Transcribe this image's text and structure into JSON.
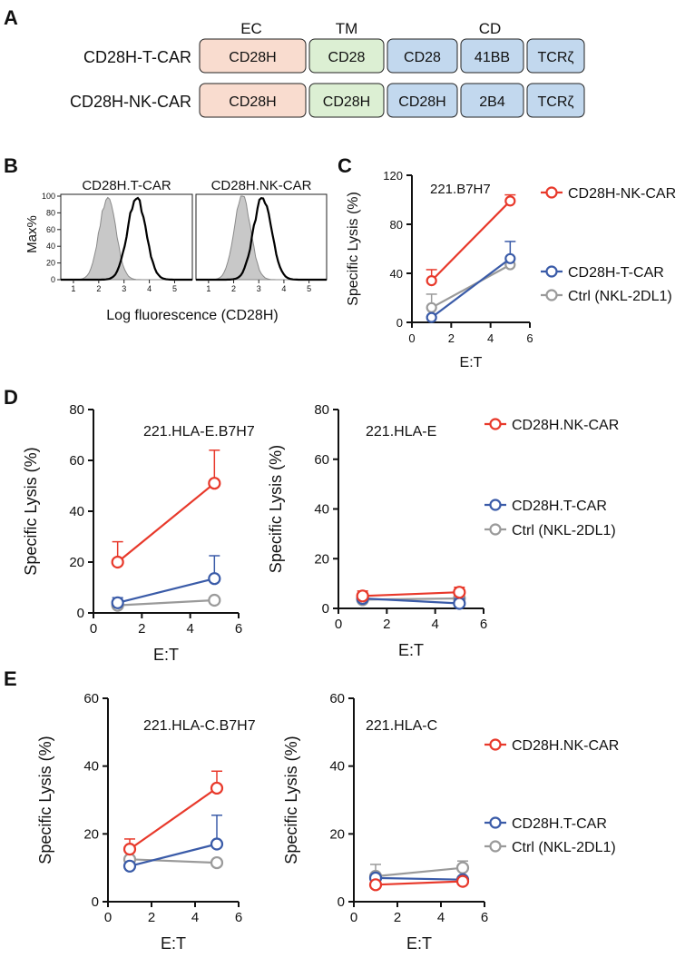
{
  "panel_letters": {
    "a": "A",
    "b": "B",
    "c": "C",
    "d": "D",
    "e": "E"
  },
  "colors": {
    "nk": "#e8392b",
    "t": "#3a5ba8",
    "ctrl": "#9a9a9a",
    "ec_fill": "#f9dccf",
    "tm_fill": "#dcefd3",
    "cd_fill": "#c2d8ee",
    "hist_fill": "#c8c8c8"
  },
  "constructs": {
    "headers": {
      "ec": "EC",
      "tm": "TM",
      "cd": "CD"
    },
    "rows": [
      {
        "name": "CD28H-T-CAR",
        "segments": [
          {
            "label": "CD28H",
            "domain": "ec"
          },
          {
            "label": "CD28",
            "domain": "tm"
          },
          {
            "label": "CD28",
            "domain": "cd"
          },
          {
            "label": "41BB",
            "domain": "cd"
          },
          {
            "label": "TCRζ",
            "domain": "cd"
          }
        ]
      },
      {
        "name": "CD28H-NK-CAR",
        "segments": [
          {
            "label": "CD28H",
            "domain": "ec"
          },
          {
            "label": "CD28H",
            "domain": "tm"
          },
          {
            "label": "CD28H",
            "domain": "cd"
          },
          {
            "label": "2B4",
            "domain": "cd"
          },
          {
            "label": "TCRζ",
            "domain": "cd"
          }
        ]
      }
    ]
  },
  "flow": {
    "ylabel": "Max%",
    "xlabel": "Log fluorescence (CD28H)",
    "yticks": [
      "0",
      "20",
      "40",
      "60",
      "80",
      "100"
    ],
    "xticks": [
      "1",
      "2",
      "3",
      "4",
      "5"
    ],
    "panels": [
      {
        "title": "CD28H.T-CAR",
        "ctrl_peak": 2.35,
        "car_peak": 3.5
      },
      {
        "title": "CD28H.NK-CAR",
        "ctrl_peak": 2.35,
        "car_peak": 3.15
      }
    ]
  },
  "chart_data": [
    {
      "id": "C",
      "type": "line",
      "title": "221.B7H7",
      "xlabel": "E:T",
      "ylabel": "Specific Lysis (%)",
      "xlim": [
        0,
        6
      ],
      "ylim": [
        0,
        120
      ],
      "xticks": [
        0,
        2,
        4,
        6
      ],
      "yticks": [
        0,
        40,
        80,
        120
      ],
      "series": [
        {
          "name": "CD28H-NK-CAR",
          "color_key": "nk",
          "x": [
            1,
            5
          ],
          "y": [
            34,
            99
          ],
          "err": [
            9,
            5
          ]
        },
        {
          "name": "CD28H-T-CAR",
          "color_key": "t",
          "x": [
            1,
            5
          ],
          "y": [
            4,
            52
          ],
          "err": [
            0,
            14
          ]
        },
        {
          "name": "Ctrl (NKL-2DL1)",
          "color_key": "ctrl",
          "x": [
            1,
            5
          ],
          "y": [
            12,
            47
          ],
          "err": [
            11,
            0
          ]
        }
      ]
    },
    {
      "id": "D1",
      "type": "line",
      "title": "221.HLA-E.B7H7",
      "xlabel": "E:T",
      "ylabel": "Specific Lysis (%)",
      "xlim": [
        0,
        6
      ],
      "ylim": [
        0,
        80
      ],
      "xticks": [
        0,
        2,
        4,
        6
      ],
      "yticks": [
        0,
        20,
        40,
        60,
        80
      ],
      "series": [
        {
          "name": "CD28H.NK-CAR",
          "color_key": "nk",
          "x": [
            1,
            5
          ],
          "y": [
            20,
            51
          ],
          "err": [
            8,
            13
          ]
        },
        {
          "name": "CD28H.T-CAR",
          "color_key": "t",
          "x": [
            1,
            5
          ],
          "y": [
            4,
            13.5
          ],
          "err": [
            2,
            9
          ]
        },
        {
          "name": "Ctrl (NKL-2DL1)",
          "color_key": "ctrl",
          "x": [
            1,
            5
          ],
          "y": [
            3,
            5
          ],
          "err": [
            0,
            0
          ]
        }
      ]
    },
    {
      "id": "D2",
      "type": "line",
      "title": "221.HLA-E",
      "xlabel": "E:T",
      "ylabel": "Specific Lysis (%)",
      "xlim": [
        0,
        6
      ],
      "ylim": [
        0,
        80
      ],
      "xticks": [
        0,
        2,
        4,
        6
      ],
      "yticks": [
        0,
        20,
        40,
        60,
        80
      ],
      "series": [
        {
          "name": "CD28H.NK-CAR",
          "color_key": "nk",
          "x": [
            1,
            5
          ],
          "y": [
            5,
            6.5
          ],
          "err": [
            2,
            2
          ]
        },
        {
          "name": "CD28H.T-CAR",
          "color_key": "t",
          "x": [
            1,
            5
          ],
          "y": [
            4,
            2
          ],
          "err": [
            2,
            2
          ]
        },
        {
          "name": "Ctrl (NKL-2DL1)",
          "color_key": "ctrl",
          "x": [
            1,
            5
          ],
          "y": [
            3.5,
            4
          ],
          "err": [
            1,
            1
          ]
        }
      ]
    },
    {
      "id": "E1",
      "type": "line",
      "title": "221.HLA-C.B7H7",
      "xlabel": "E:T",
      "ylabel": "Specific Lysis (%)",
      "xlim": [
        0,
        6
      ],
      "ylim": [
        0,
        60
      ],
      "xticks": [
        0,
        2,
        4,
        6
      ],
      "yticks": [
        0,
        20,
        40,
        60
      ],
      "series": [
        {
          "name": "CD28H.NK-CAR",
          "color_key": "nk",
          "x": [
            1,
            5
          ],
          "y": [
            15.5,
            33.5
          ],
          "err": [
            3,
            5
          ]
        },
        {
          "name": "CD28H.T-CAR",
          "color_key": "t",
          "x": [
            1,
            5
          ],
          "y": [
            10.5,
            17
          ],
          "err": [
            0,
            8.5
          ]
        },
        {
          "name": "Ctrl (NKL-2DL1)",
          "color_key": "ctrl",
          "x": [
            1,
            5
          ],
          "y": [
            12.5,
            11.5
          ],
          "err": [
            0,
            0
          ]
        }
      ]
    },
    {
      "id": "E2",
      "type": "line",
      "title": "221.HLA-C",
      "xlabel": "E:T",
      "ylabel": "Specific Lysis (%)",
      "xlim": [
        0,
        6
      ],
      "ylim": [
        0,
        60
      ],
      "xticks": [
        0,
        2,
        4,
        6
      ],
      "yticks": [
        0,
        20,
        40,
        60
      ],
      "series": [
        {
          "name": "CD28H.NK-CAR",
          "color_key": "nk",
          "x": [
            1,
            5
          ],
          "y": [
            5,
            6
          ],
          "err": [
            0,
            0
          ]
        },
        {
          "name": "CD28H.T-CAR",
          "color_key": "t",
          "x": [
            1,
            5
          ],
          "y": [
            7,
            6.5
          ],
          "err": [
            0,
            0
          ]
        },
        {
          "name": "Ctrl (NKL-2DL1)",
          "color_key": "ctrl",
          "x": [
            1,
            5
          ],
          "y": [
            7.5,
            10
          ],
          "err": [
            3.5,
            2
          ]
        }
      ]
    }
  ],
  "legends": {
    "C": [
      "CD28H-NK-CAR",
      "CD28H-T-CAR",
      "Ctrl (NKL-2DL1)"
    ],
    "D": [
      "CD28H.NK-CAR",
      "CD28H.T-CAR",
      "Ctrl (NKL-2DL1)"
    ],
    "E": [
      "CD28H.NK-CAR",
      "CD28H.T-CAR",
      "Ctrl (NKL-2DL1)"
    ]
  }
}
